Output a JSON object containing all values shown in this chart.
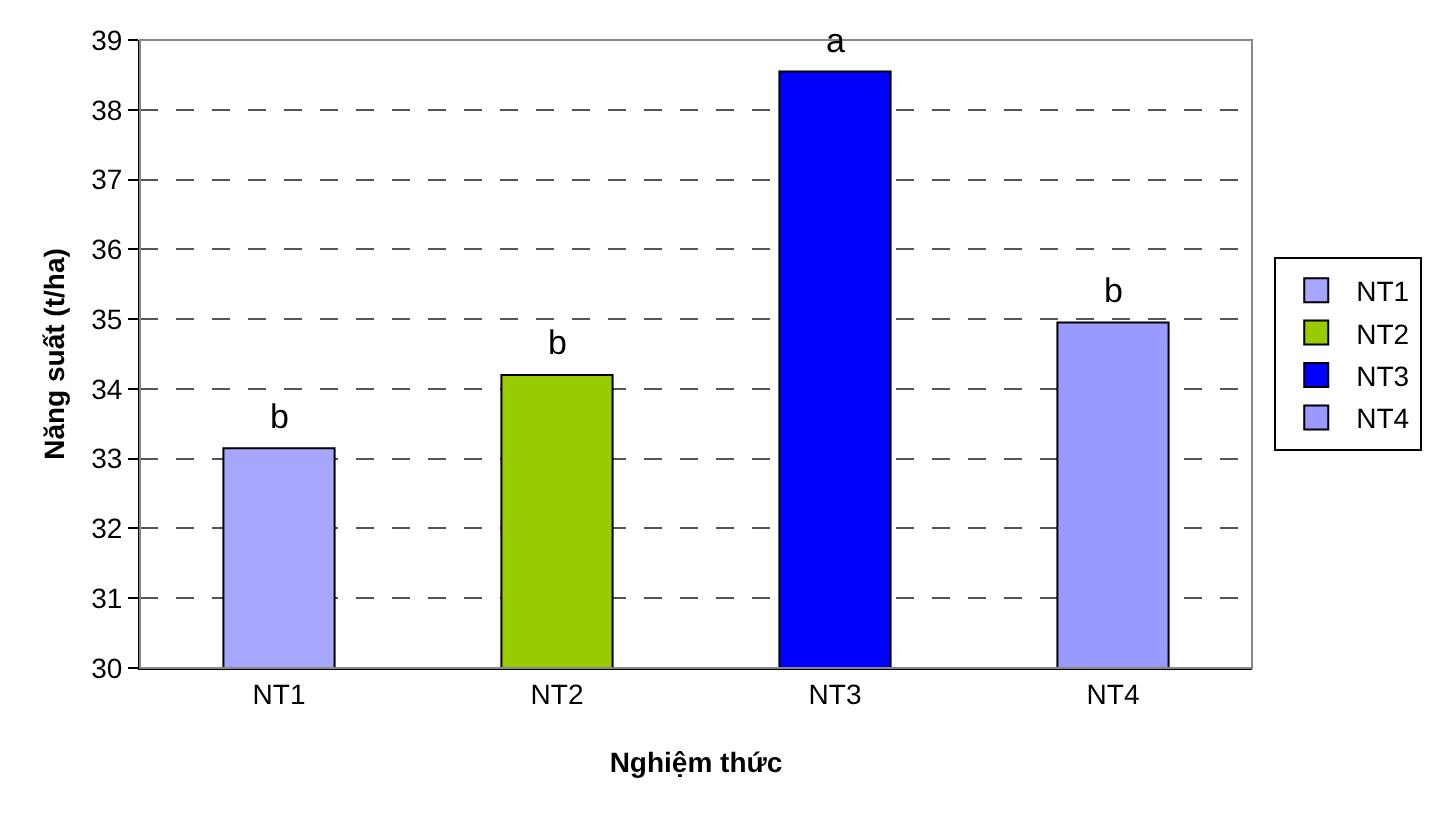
{
  "chart_data": {
    "type": "bar",
    "xlabel": "Nghiệm thức",
    "ylabel": "Năng suất (t/ha)",
    "categories": [
      "NT1",
      "NT2",
      "NT3",
      "NT4"
    ],
    "series": [
      {
        "name": "NT1",
        "color": "#a6a6ff",
        "values": [
          33.15,
          null,
          null,
          null
        ]
      },
      {
        "name": "NT2",
        "color": "#99cc00",
        "values": [
          null,
          34.2,
          null,
          null
        ]
      },
      {
        "name": "NT3",
        "color": "#0000ff",
        "values": [
          null,
          null,
          38.55,
          null
        ]
      },
      {
        "name": "NT4",
        "color": "#9999ff",
        "values": [
          null,
          null,
          null,
          34.95
        ]
      }
    ],
    "ylim": [
      30,
      39
    ],
    "yticks": [
      30,
      31,
      32,
      33,
      34,
      35,
      36,
      37,
      38,
      39
    ],
    "grid": "y",
    "legend": "right",
    "annotations": [
      {
        "text": "b",
        "x": "NT1",
        "y": 33.15
      },
      {
        "text": "b",
        "x": "NT2",
        "y": 34.2
      },
      {
        "text": "a",
        "x": "NT3",
        "y": 38.55
      },
      {
        "text": "b",
        "x": "NT4",
        "y": 34.95
      }
    ]
  }
}
